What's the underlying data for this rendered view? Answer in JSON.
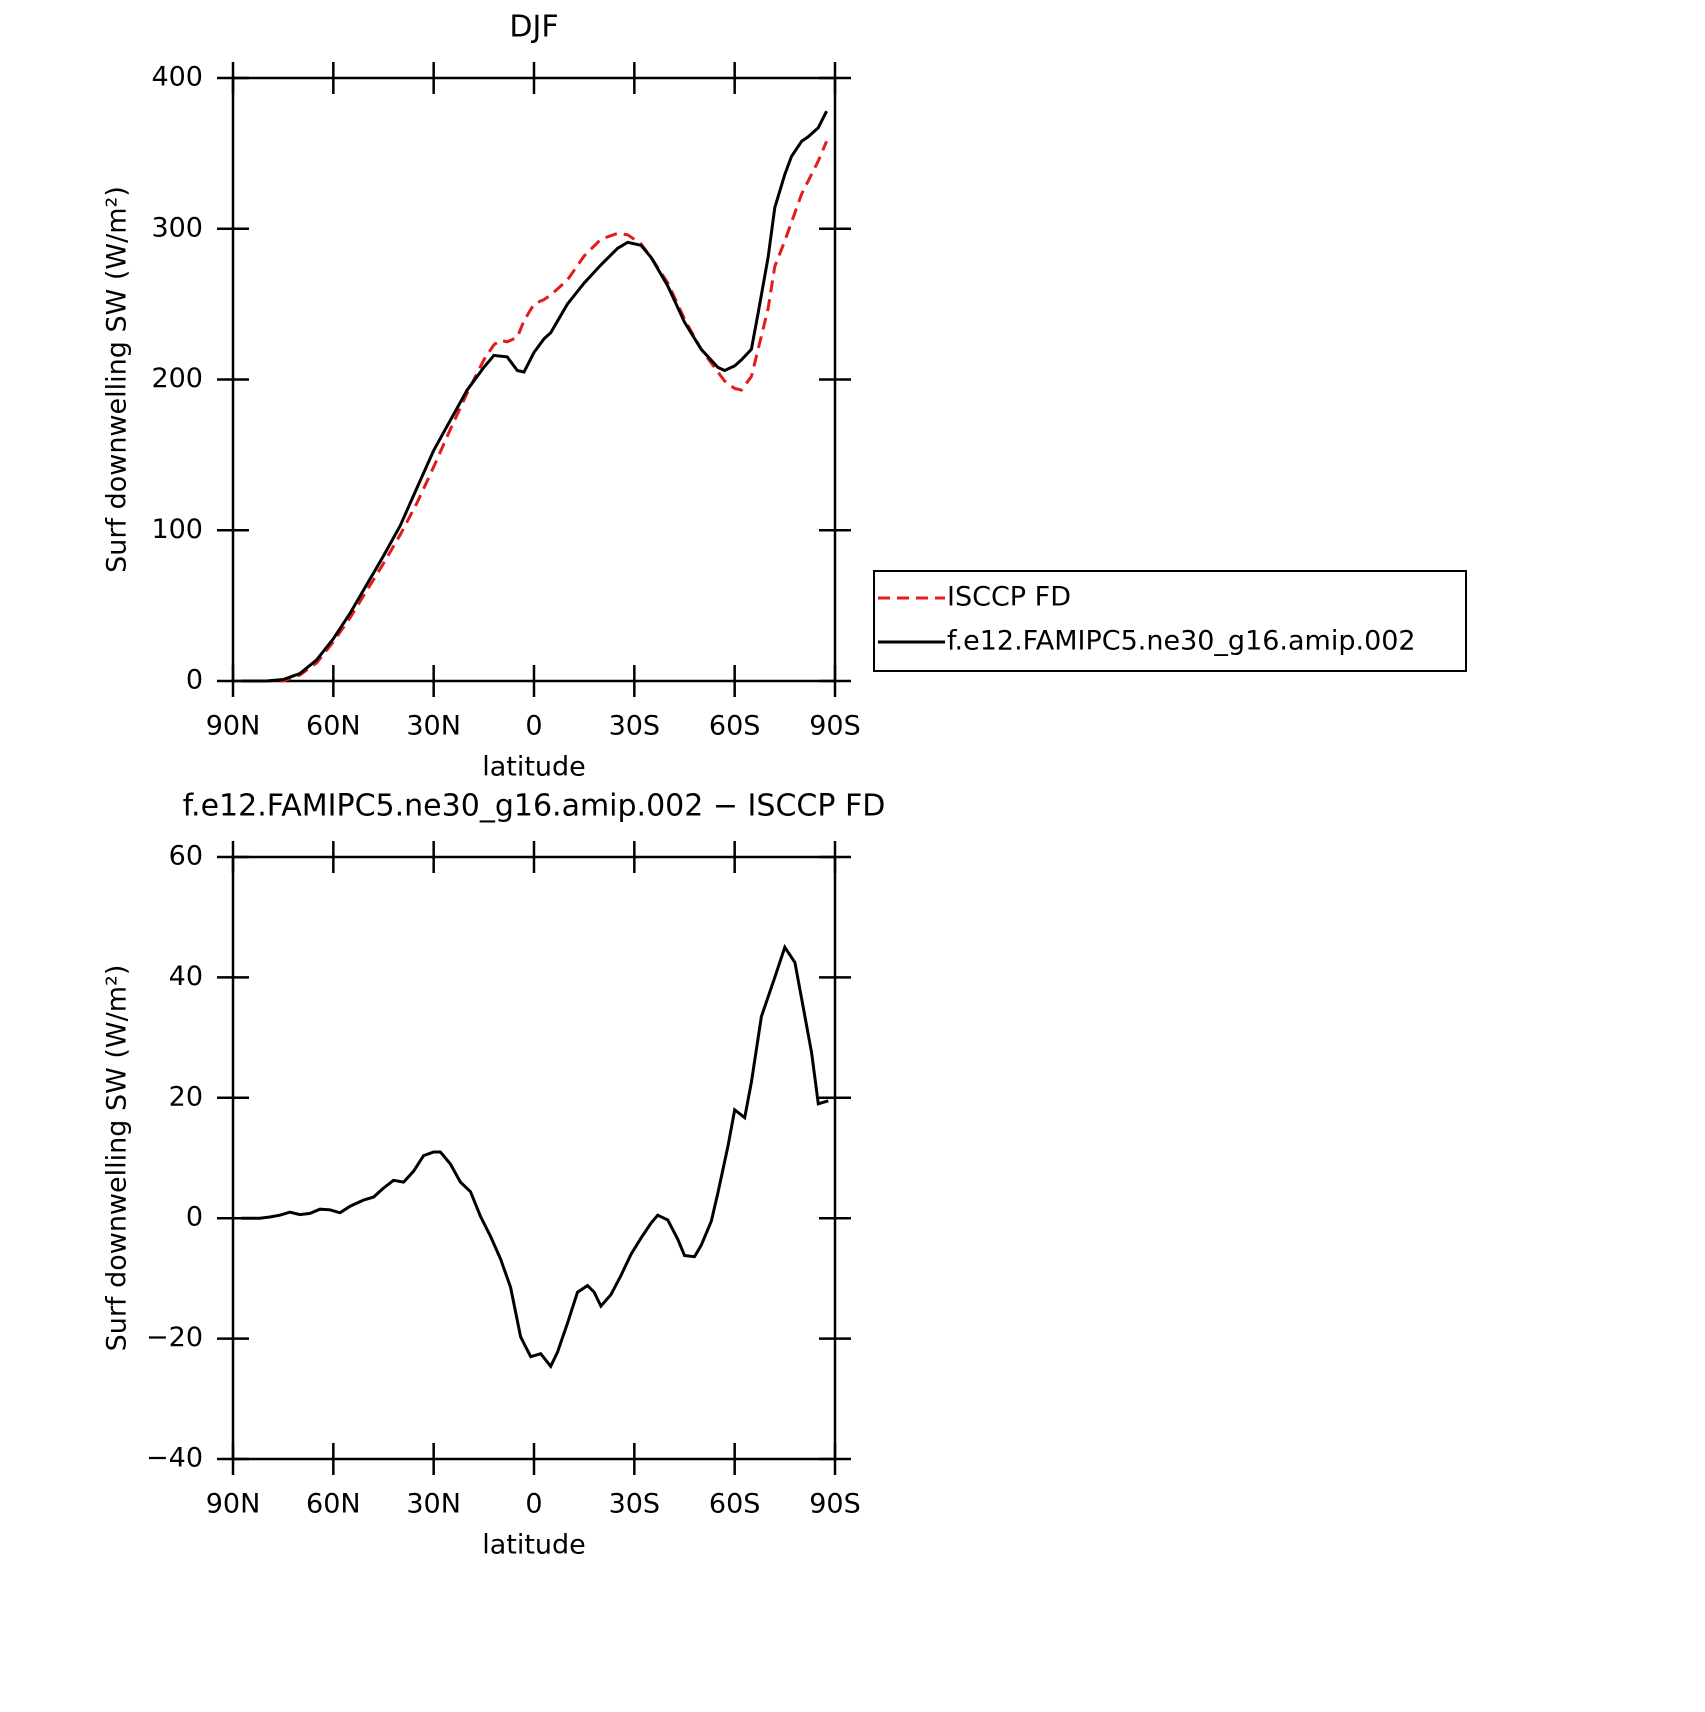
{
  "chart_data": [
    {
      "type": "line",
      "title": "DJF",
      "xlabel": "latitude",
      "ylabel": "Surf downwelling SW (W/m²)",
      "xlim": [
        90,
        -90
      ],
      "xticks": [
        {
          "value": 90,
          "label": "90N"
        },
        {
          "value": 60,
          "label": "60N"
        },
        {
          "value": 30,
          "label": "30N"
        },
        0,
        {
          "value": -30,
          "label": "30S"
        },
        {
          "value": -60,
          "label": "60S"
        },
        {
          "value": -90,
          "label": "90S"
        }
      ],
      "ylim": [
        0,
        400
      ],
      "yticks": [
        0,
        100,
        200,
        300,
        400
      ],
      "legend": "right",
      "series": [
        {
          "name": "ISCCP FD",
          "color": "#e41a1c",
          "dash": true,
          "x": [
            87.5,
            80,
            75,
            70,
            65,
            60,
            55,
            50,
            45,
            40,
            35,
            30,
            25,
            20,
            15,
            12,
            10,
            8,
            5,
            3,
            0,
            -3,
            -5,
            -10,
            -15,
            -20,
            -25,
            -28,
            -32,
            -35,
            -40,
            -45,
            -50,
            -55,
            -57,
            -60,
            -62,
            -65,
            -67,
            -70,
            -72,
            -75,
            -80,
            -85,
            -87.5
          ],
          "values": [
            0,
            0,
            0,
            4,
            12,
            26,
            42,
            60,
            78,
            97,
            118,
            142,
            167,
            191,
            213,
            223,
            226,
            225,
            228,
            239,
            250,
            253,
            256,
            266,
            282,
            293,
            297,
            296,
            290,
            281,
            264,
            240,
            220,
            205,
            199,
            194,
            193,
            202,
            220,
            247,
            275,
            292,
            323,
            345,
            358
          ]
        },
        {
          "name": "f.e12.FAMIPC5.ne30_g16.amip.002",
          "color": "#000000",
          "dash": false,
          "x": [
            87.5,
            80,
            75,
            70,
            65,
            60,
            55,
            50,
            45,
            40,
            35,
            30,
            25,
            20,
            15,
            12,
            8,
            5,
            3,
            0,
            -3,
            -5,
            -10,
            -15,
            -20,
            -25,
            -28,
            -32,
            -35,
            -40,
            -45,
            -50,
            -55,
            -57,
            -60,
            -62,
            -65,
            -67,
            -70,
            -72,
            -75,
            -77,
            -80,
            -82,
            -85,
            -87.5
          ],
          "values": [
            0,
            0,
            1,
            5,
            14,
            28,
            45,
            64,
            83,
            103,
            128,
            153,
            173,
            193,
            208,
            216,
            215,
            206,
            205,
            218,
            227,
            231,
            250,
            264,
            276,
            287,
            291,
            289,
            281,
            262,
            238,
            220,
            208,
            206,
            209,
            213,
            220,
            244,
            281,
            314,
            336,
            348,
            358,
            361,
            367,
            378
          ]
        }
      ]
    },
    {
      "type": "line",
      "title": "f.e12.FAMIPC5.ne30_g16.amip.002 − ISCCP FD",
      "xlabel": "latitude",
      "ylabel": "Surf downwelling SW (W/m²)",
      "xlim": [
        90,
        -90
      ],
      "xticks": [
        {
          "value": 90,
          "label": "90N"
        },
        {
          "value": 60,
          "label": "60N"
        },
        {
          "value": 30,
          "label": "30N"
        },
        0,
        {
          "value": -30,
          "label": "30S"
        },
        {
          "value": -60,
          "label": "60S"
        },
        {
          "value": -90,
          "label": "90S"
        }
      ],
      "ylim": [
        -40,
        60
      ],
      "yticks": [
        {
          "value": -40,
          "label": "−40"
        },
        {
          "value": -20,
          "label": "−20"
        },
        0,
        20,
        40,
        60
      ],
      "series": [
        {
          "color": "#000000",
          "dash": false,
          "x": [
            87.5,
            85,
            82,
            79,
            76,
            73,
            70,
            67,
            64,
            61,
            58,
            55,
            51,
            48,
            45,
            42,
            39,
            36,
            33,
            30,
            28,
            25,
            22,
            19,
            16,
            13,
            10,
            7,
            4,
            1,
            -2,
            -5,
            -7,
            -10,
            -13,
            -16,
            -18,
            -20,
            -23,
            -26,
            -29,
            -32,
            -35,
            -37,
            -40,
            -43,
            -45,
            -48,
            -50,
            -53,
            -55,
            -58,
            -60,
            -63,
            -65,
            -68,
            -72,
            -75,
            -78,
            -80,
            -83,
            -85,
            -88
          ],
          "values": [
            0,
            0,
            0,
            0.2,
            0.5,
            1,
            0.6,
            0.8,
            1.5,
            1.4,
            0.9,
            2,
            3,
            3.5,
            5,
            6.3,
            6,
            7.8,
            10.4,
            11,
            11,
            9,
            6,
            4.4,
            0.3,
            -3,
            -6.8,
            -11.5,
            -19.7,
            -23,
            -22.5,
            -24.6,
            -22.3,
            -17.5,
            -12.3,
            -11.2,
            -12.3,
            -14.6,
            -12.7,
            -9.5,
            -6,
            -3.3,
            -0.8,
            0.5,
            -0.3,
            -3.5,
            -6.2,
            -6.4,
            -4.5,
            -0.5,
            4.2,
            12,
            18,
            16.7,
            22.6,
            33.5,
            40,
            45,
            42.5,
            36.5,
            27.5,
            19,
            19.5
          ]
        }
      ]
    }
  ]
}
